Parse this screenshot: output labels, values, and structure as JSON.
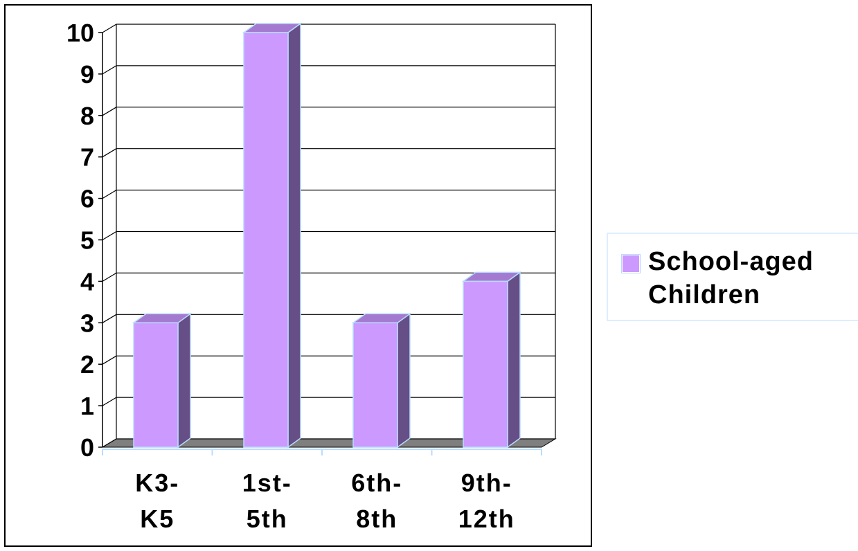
{
  "chart_data": {
    "type": "bar",
    "title": "",
    "xlabel": "",
    "ylabel": "",
    "categories": [
      [
        "K3-",
        "K5"
      ],
      [
        "1st-",
        "5th"
      ],
      [
        "6th-",
        "8th"
      ],
      [
        "9th-",
        "12th"
      ]
    ],
    "series": [
      {
        "name": "School-aged Children",
        "values": [
          3,
          10,
          3,
          4
        ]
      }
    ],
    "ylim": [
      0,
      10
    ],
    "yticks": [
      "0",
      "1",
      "2",
      "3",
      "4",
      "5",
      "6",
      "7",
      "8",
      "9",
      "10"
    ],
    "grid": true,
    "style": "3d-column",
    "legend_position": "right",
    "colors": {
      "bar_front": "#cc99ff",
      "bar_side": "#664e86",
      "bar_top": "#a47ad0",
      "bar_edge": "#b8dcff",
      "floor": "#7f7f7f",
      "grid": "#000000"
    }
  },
  "legend": {
    "line1": "School-aged",
    "line2": "Children"
  }
}
